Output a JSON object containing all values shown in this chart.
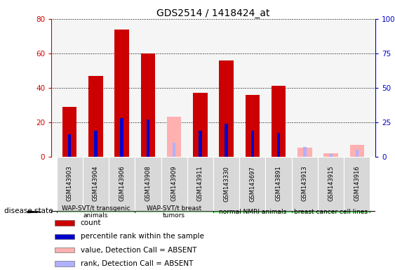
{
  "title": "GDS2514 / 1418424_at",
  "samples": [
    "GSM143903",
    "GSM143904",
    "GSM143906",
    "GSM143908",
    "GSM143909",
    "GSM143911",
    "GSM143330",
    "GSM143697",
    "GSM143891",
    "GSM143913",
    "GSM143915",
    "GSM143916"
  ],
  "count_values": [
    29,
    47,
    74,
    60,
    0,
    37,
    56,
    36,
    41,
    0,
    0,
    0
  ],
  "count_absent_values": [
    0,
    0,
    0,
    0,
    23,
    0,
    0,
    0,
    0,
    5,
    2,
    7
  ],
  "rank_values": [
    16,
    19,
    28,
    27,
    0,
    19,
    24,
    19,
    17,
    0,
    0,
    0
  ],
  "rank_absent_values": [
    0,
    0,
    0,
    0,
    10,
    0,
    0,
    0,
    0,
    7,
    2,
    5
  ],
  "group_defs": [
    {
      "label": "WAP-SVT/t transgenic\nanimals",
      "start": 0,
      "end": 3,
      "color": "#c8ecc8"
    },
    {
      "label": "WAP-SVT/t breast\ntumors",
      "start": 3,
      "end": 6,
      "color": "#c8ecc8"
    },
    {
      "label": "normal NMRI animals",
      "start": 6,
      "end": 9,
      "color": "#90ee90"
    },
    {
      "label": "breast cancer cell lines",
      "start": 9,
      "end": 12,
      "color": "#90ee90"
    }
  ],
  "bar_color_count": "#cc0000",
  "bar_color_rank": "#0000cc",
  "bar_color_absent_count": "#ffb0b0",
  "bar_color_absent_rank": "#b0b0ff",
  "ylim": [
    0,
    80
  ],
  "yticks_left": [
    0,
    20,
    40,
    60,
    80
  ],
  "yticks_right": [
    0,
    25,
    50,
    75,
    100
  ],
  "count_bar_width": 0.55,
  "rank_bar_width": 0.12,
  "background_color": "#e8e8e8",
  "plot_bg": "#f5f5f5"
}
